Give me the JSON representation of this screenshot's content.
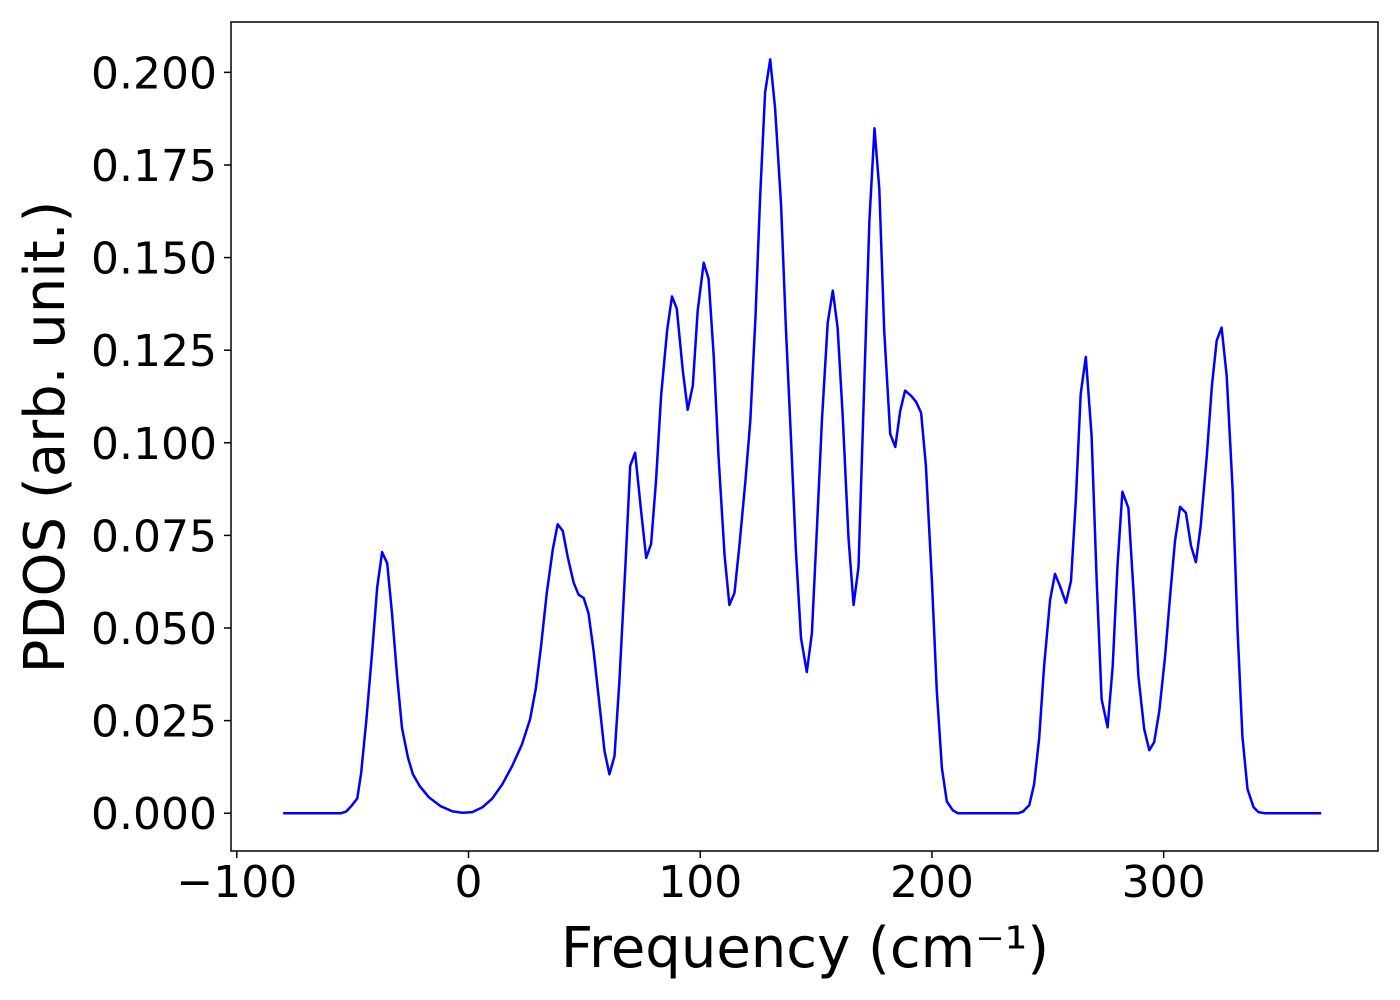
{
  "chart_data": {
    "type": "line",
    "xlabel": "Frequency (cm⁻¹)",
    "ylabel": "PDOS (arb. unit.)",
    "xlim": [
      -102.5,
      392.5
    ],
    "ylim": [
      -0.0102,
      0.2136
    ],
    "xticks": [
      {
        "value": -100,
        "label": "−100"
      },
      0,
      100,
      200,
      300
    ],
    "yticks": [
      {
        "value": 0,
        "label": "0.000"
      },
      {
        "value": 0.025,
        "label": "0.025"
      },
      {
        "value": 0.05,
        "label": "0.050"
      },
      {
        "value": 0.075,
        "label": "0.075"
      },
      {
        "value": 0.1,
        "label": "0.100"
      },
      {
        "value": 0.125,
        "label": "0.125"
      },
      {
        "value": 0.15,
        "label": "0.150"
      },
      {
        "value": 0.175,
        "label": "0.175"
      },
      {
        "value": 0.2,
        "label": "0.200"
      }
    ],
    "series": [
      {
        "color": "#0000ff",
        "x": [
          -80,
          -55,
          -52.7,
          -50.5,
          -48,
          -46.3,
          -44.1,
          -41.5,
          -39.4,
          -37.3,
          -35.1,
          -33,
          -30.8,
          -28.7,
          -26.1,
          -24,
          -21,
          -17.1,
          -12,
          -6.9,
          -2.6,
          1.7,
          6,
          10.3,
          14.6,
          18.8,
          23.1,
          26.6,
          29.1,
          31.3,
          33.8,
          36.4,
          38.5,
          40.7,
          42.8,
          45.4,
          47.5,
          49.7,
          51.8,
          54,
          56.5,
          58.7,
          60.8,
          63,
          65.1,
          67.7,
          69.8,
          71.9,
          74.5,
          76.7,
          78.8,
          80.9,
          83.1,
          85.7,
          87.8,
          89.9,
          92.5,
          94.6,
          96.8,
          98.9,
          101.5,
          103.6,
          105.8,
          107.9,
          110.5,
          112.6,
          114.8,
          116.9,
          119.5,
          121.6,
          123.8,
          125.9,
          128,
          130.2,
          132.3,
          134.9,
          137,
          139.2,
          141.3,
          143.5,
          146,
          148.2,
          150.3,
          152.5,
          155,
          157.2,
          159.3,
          161.5,
          164,
          166.2,
          168.3,
          170.4,
          173,
          175.2,
          177.3,
          179.4,
          182,
          184.2,
          186.3,
          188.4,
          191,
          193.1,
          195.3,
          197.4,
          200,
          202.1,
          204.3,
          206.4,
          209,
          211.1,
          237.3,
          239.4,
          242,
          244.1,
          246.3,
          248.4,
          251,
          253.1,
          255.2,
          257.8,
          260,
          262.1,
          264.2,
          266.4,
          268.9,
          271.1,
          273.2,
          275.8,
          278,
          280.1,
          282.2,
          284.8,
          287,
          289.1,
          291.6,
          293.8,
          295.9,
          298.1,
          300.6,
          302.8,
          304.9,
          307.1,
          309.6,
          311.8,
          313.9,
          316,
          318.6,
          320.8,
          322.9,
          325,
          327.2,
          329.8,
          331.9,
          334,
          336.2,
          338.8,
          340.9,
          343.5,
          368
        ],
        "values": [
          0,
          0,
          0.0005,
          0.002,
          0.004,
          0.011,
          0.025,
          0.044,
          0.061,
          0.0705,
          0.0675,
          0.054,
          0.037,
          0.023,
          0.015,
          0.0105,
          0.0073,
          0.0043,
          0.0019,
          0.0005,
          0.0001,
          0.0003,
          0.0016,
          0.004,
          0.0078,
          0.0127,
          0.0186,
          0.0254,
          0.0338,
          0.045,
          0.0595,
          0.0714,
          0.078,
          0.0762,
          0.0692,
          0.0622,
          0.059,
          0.0581,
          0.054,
          0.0438,
          0.0295,
          0.0168,
          0.0105,
          0.0154,
          0.0357,
          0.0668,
          0.0938,
          0.0973,
          0.0816,
          0.0689,
          0.0727,
          0.0897,
          0.1127,
          0.1303,
          0.1395,
          0.1362,
          0.1195,
          0.1089,
          0.1154,
          0.1357,
          0.1486,
          0.1443,
          0.1235,
          0.0965,
          0.0695,
          0.0562,
          0.0595,
          0.0722,
          0.0897,
          0.1059,
          0.1335,
          0.1668,
          0.1946,
          0.2035,
          0.1903,
          0.1641,
          0.1303,
          0.1005,
          0.0708,
          0.0473,
          0.0381,
          0.0486,
          0.0762,
          0.1059,
          0.1324,
          0.1411,
          0.1311,
          0.1073,
          0.0743,
          0.0562,
          0.0665,
          0.1086,
          0.16,
          0.1849,
          0.1686,
          0.1303,
          0.1024,
          0.0989,
          0.1086,
          0.1141,
          0.1127,
          0.1111,
          0.1081,
          0.0938,
          0.0627,
          0.033,
          0.0122,
          0.0032,
          0.0008,
          0,
          0,
          0.0005,
          0.0022,
          0.0078,
          0.0203,
          0.0397,
          0.0576,
          0.0646,
          0.0614,
          0.0568,
          0.0627,
          0.0843,
          0.1132,
          0.1232,
          0.1019,
          0.0627,
          0.0308,
          0.0232,
          0.0397,
          0.0668,
          0.0868,
          0.0824,
          0.06,
          0.037,
          0.0227,
          0.017,
          0.0192,
          0.0276,
          0.0424,
          0.0586,
          0.0735,
          0.0827,
          0.0811,
          0.0722,
          0.0678,
          0.0776,
          0.0965,
          0.1154,
          0.1276,
          0.1311,
          0.1181,
          0.087,
          0.0492,
          0.0208,
          0.0065,
          0.0016,
          0.0003,
          0,
          0
        ]
      }
    ]
  }
}
